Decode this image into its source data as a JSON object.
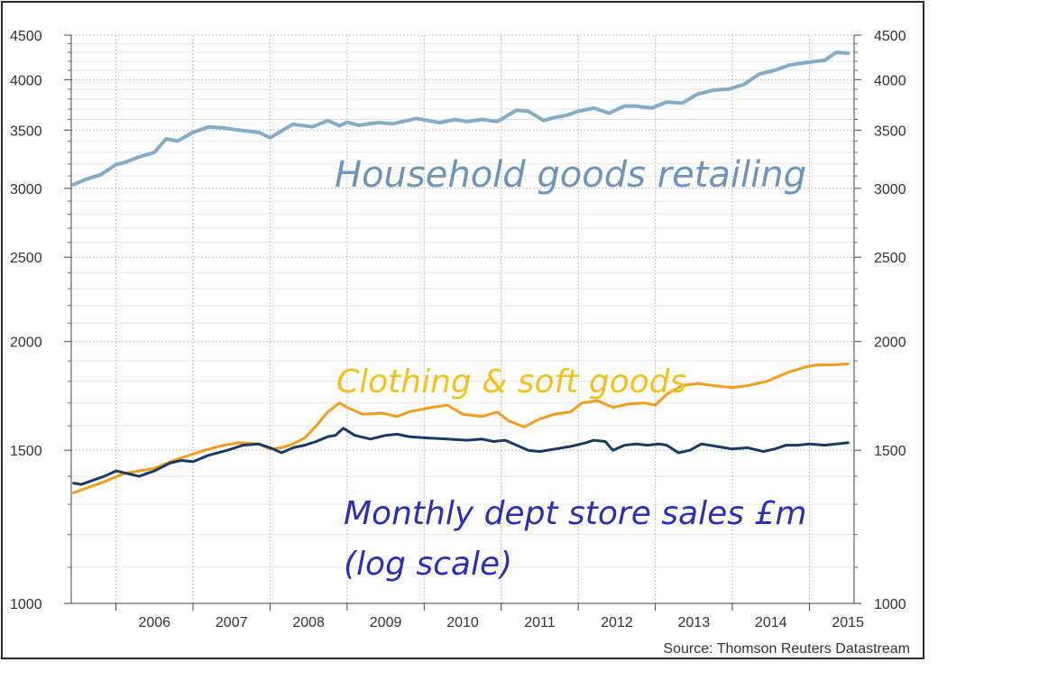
{
  "chart_data": {
    "type": "line",
    "yscale": "log",
    "ylim": [
      1000,
      4500
    ],
    "xlim": [
      2005.42,
      2015.58
    ],
    "y_ticks": [
      "4500",
      "4000",
      "3500",
      "3000",
      "2500",
      "2000",
      "1500",
      "1000"
    ],
    "y_tick_values": [
      4500,
      4000,
      3500,
      3000,
      2500,
      2000,
      1500,
      1000
    ],
    "x_ticks": [
      "2006",
      "2007",
      "2008",
      "2009",
      "2010",
      "2011",
      "2012",
      "2013",
      "2014",
      "2015"
    ],
    "grid": true,
    "source": "Source: Thomson Reuters Datastream",
    "annotations": {
      "household": "Household goods retailing",
      "clothing": "Clothing & soft goods",
      "monthly_line1": "Monthly dept store sales £m",
      "monthly_line2": "(log scale)"
    },
    "colors": {
      "household": "#85acc4",
      "clothing": "#f39c1e",
      "dept_store": "#1a3a66",
      "clothing_text": "#f1c21b",
      "monthly_text": "#2a2fb4",
      "household_text": "#6f93b8"
    },
    "series": [
      {
        "key": "household",
        "x": [
          2005.45,
          2005.6,
          2005.8,
          2006.0,
          2006.1,
          2006.3,
          2006.5,
          2006.65,
          2006.8,
          2007.0,
          2007.2,
          2007.4,
          2007.6,
          2007.85,
          2008.0,
          2008.3,
          2008.55,
          2008.75,
          2008.9,
          2009.0,
          2009.15,
          2009.4,
          2009.6,
          2009.9,
          2010.2,
          2010.4,
          2010.55,
          2010.75,
          2010.95,
          2011.2,
          2011.35,
          2011.55,
          2011.7,
          2011.85,
          2012.0,
          2012.2,
          2012.4,
          2012.6,
          2012.75,
          2012.95,
          2013.15,
          2013.35,
          2013.55,
          2013.75,
          2013.95,
          2014.15,
          2014.35,
          2014.55,
          2014.75,
          2015.0,
          2015.2,
          2015.35,
          2015.5
        ],
        "y": [
          3030,
          3070,
          3110,
          3195,
          3210,
          3260,
          3300,
          3420,
          3400,
          3480,
          3530,
          3520,
          3500,
          3480,
          3430,
          3555,
          3530,
          3590,
          3540,
          3575,
          3545,
          3570,
          3560,
          3610,
          3570,
          3600,
          3580,
          3600,
          3580,
          3690,
          3680,
          3590,
          3620,
          3640,
          3680,
          3710,
          3660,
          3730,
          3730,
          3710,
          3770,
          3760,
          3850,
          3890,
          3900,
          3950,
          4060,
          4100,
          4160,
          4190,
          4210,
          4300,
          4290
        ]
      },
      {
        "key": "clothing",
        "x": [
          2005.45,
          2005.6,
          2005.85,
          2006.1,
          2006.3,
          2006.5,
          2006.75,
          2006.95,
          2007.15,
          2007.4,
          2007.6,
          2007.85,
          2008.0,
          2008.15,
          2008.3,
          2008.45,
          2008.6,
          2008.75,
          2008.9,
          2009.0,
          2009.2,
          2009.45,
          2009.65,
          2009.8,
          2010.1,
          2010.3,
          2010.5,
          2010.75,
          2010.95,
          2011.1,
          2011.3,
          2011.5,
          2011.7,
          2011.9,
          2012.05,
          2012.25,
          2012.45,
          2012.65,
          2012.85,
          2013.0,
          2013.15,
          2013.35,
          2013.55,
          2013.75,
          2014.0,
          2014.2,
          2014.45,
          2014.7,
          2014.95,
          2015.1,
          2015.3,
          2015.5
        ],
        "y": [
          1340,
          1355,
          1380,
          1410,
          1420,
          1430,
          1460,
          1480,
          1500,
          1520,
          1530,
          1525,
          1505,
          1510,
          1525,
          1550,
          1600,
          1660,
          1700,
          1680,
          1650,
          1655,
          1640,
          1660,
          1680,
          1690,
          1650,
          1640,
          1660,
          1620,
          1595,
          1630,
          1650,
          1660,
          1700,
          1710,
          1680,
          1695,
          1700,
          1690,
          1740,
          1780,
          1790,
          1780,
          1770,
          1780,
          1800,
          1840,
          1870,
          1880,
          1880,
          1885
        ]
      },
      {
        "key": "dept_store",
        "x": [
          2005.45,
          2005.55,
          2005.7,
          2005.85,
          2006.0,
          2006.15,
          2006.3,
          2006.5,
          2006.7,
          2006.85,
          2007.0,
          2007.2,
          2007.45,
          2007.65,
          2007.85,
          2008.0,
          2008.15,
          2008.3,
          2008.45,
          2008.6,
          2008.75,
          2008.85,
          2008.95,
          2009.1,
          2009.3,
          2009.5,
          2009.65,
          2009.8,
          2010.0,
          2010.3,
          2010.55,
          2010.75,
          2010.9,
          2011.05,
          2011.2,
          2011.35,
          2011.5,
          2011.7,
          2011.9,
          2012.1,
          2012.2,
          2012.35,
          2012.45,
          2012.6,
          2012.75,
          2012.9,
          2013.05,
          2013.15,
          2013.3,
          2013.45,
          2013.6,
          2013.8,
          2014.0,
          2014.2,
          2014.4,
          2014.55,
          2014.7,
          2014.85,
          2015.0,
          2015.2,
          2015.35,
          2015.5
        ],
        "y": [
          1375,
          1370,
          1385,
          1400,
          1420,
          1410,
          1400,
          1420,
          1450,
          1460,
          1455,
          1480,
          1500,
          1520,
          1525,
          1510,
          1490,
          1510,
          1520,
          1535,
          1555,
          1560,
          1590,
          1560,
          1545,
          1560,
          1565,
          1555,
          1550,
          1545,
          1540,
          1545,
          1535,
          1540,
          1520,
          1500,
          1495,
          1505,
          1515,
          1530,
          1540,
          1535,
          1500,
          1520,
          1525,
          1520,
          1525,
          1520,
          1490,
          1500,
          1525,
          1515,
          1505,
          1510,
          1495,
          1505,
          1520,
          1520,
          1525,
          1520,
          1525,
          1530
        ]
      }
    ]
  }
}
